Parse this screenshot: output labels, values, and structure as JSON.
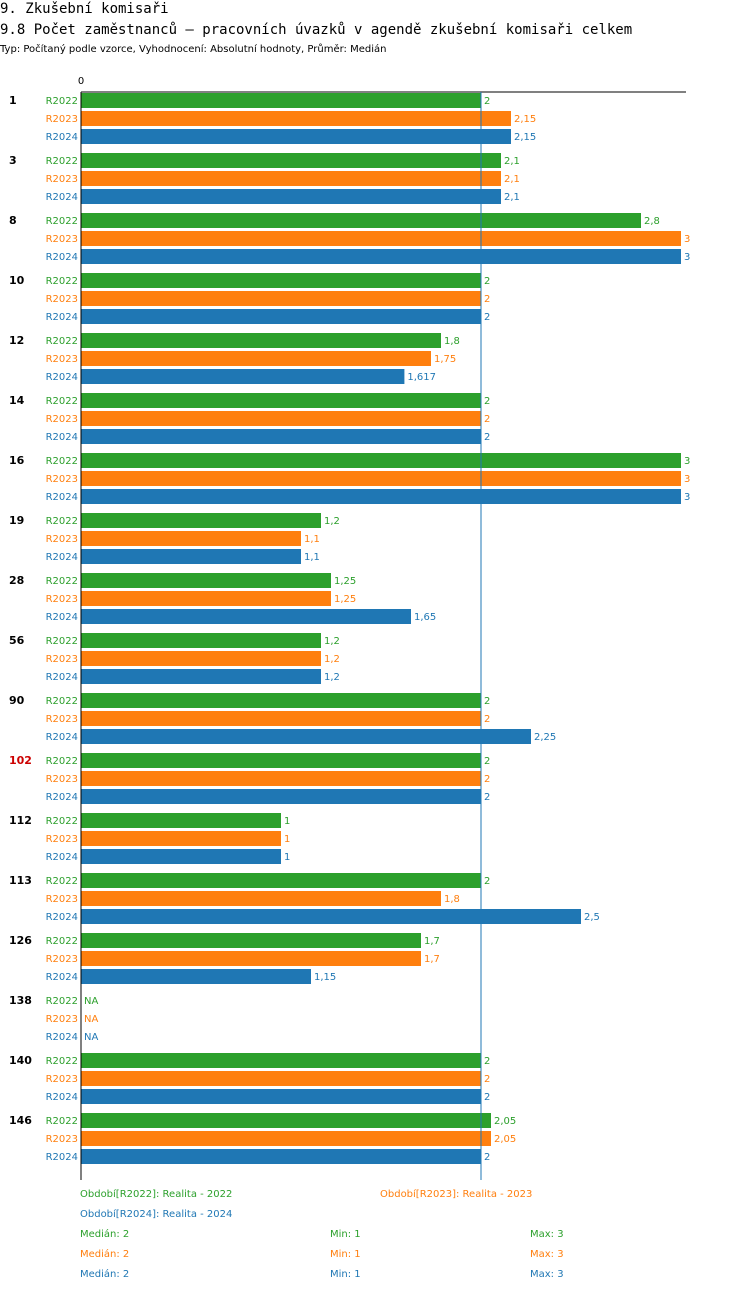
{
  "header": {
    "title": "9. Zkušební komisaři",
    "subtitle": "9.8 Počet zaměstnanců – pracovních úvazků v agendě zkušební komisaři celkem",
    "type_line": "Typ: Počítaný podle vzorce, Vyhodnocení: Absolutní hodnoty, Průměr: Medián"
  },
  "colors": {
    "R2022": "#2ca02c",
    "R2023": "#ff7f0e",
    "R2024": "#1f77b4",
    "highlight": "#cc0000"
  },
  "chart_data": {
    "type": "bar",
    "orientation": "horizontal",
    "xlim": [
      0,
      3
    ],
    "x_zero_label": "0",
    "median_line": 2,
    "series_names": [
      "R2022",
      "R2023",
      "R2024"
    ],
    "groups": [
      {
        "label": "1",
        "highlight": false,
        "values": [
          2,
          2.15,
          2.15
        ],
        "labels": [
          "2",
          "2,15",
          "2,15"
        ]
      },
      {
        "label": "3",
        "highlight": false,
        "values": [
          2.1,
          2.1,
          2.1
        ],
        "labels": [
          "2,1",
          "2,1",
          "2,1"
        ]
      },
      {
        "label": "8",
        "highlight": false,
        "values": [
          2.8,
          3,
          3
        ],
        "labels": [
          "2,8",
          "3",
          "3"
        ]
      },
      {
        "label": "10",
        "highlight": false,
        "values": [
          2,
          2,
          2
        ],
        "labels": [
          "2",
          "2",
          "2"
        ]
      },
      {
        "label": "12",
        "highlight": false,
        "values": [
          1.8,
          1.75,
          1.617
        ],
        "labels": [
          "1,8",
          "1,75",
          "1,617"
        ]
      },
      {
        "label": "14",
        "highlight": false,
        "values": [
          2,
          2,
          2
        ],
        "labels": [
          "2",
          "2",
          "2"
        ]
      },
      {
        "label": "16",
        "highlight": false,
        "values": [
          3,
          3,
          3
        ],
        "labels": [
          "3",
          "3",
          "3"
        ]
      },
      {
        "label": "19",
        "highlight": false,
        "values": [
          1.2,
          1.1,
          1.1
        ],
        "labels": [
          "1,2",
          "1,1",
          "1,1"
        ]
      },
      {
        "label": "28",
        "highlight": false,
        "values": [
          1.25,
          1.25,
          1.65
        ],
        "labels": [
          "1,25",
          "1,25",
          "1,65"
        ]
      },
      {
        "label": "56",
        "highlight": false,
        "values": [
          1.2,
          1.2,
          1.2
        ],
        "labels": [
          "1,2",
          "1,2",
          "1,2"
        ]
      },
      {
        "label": "90",
        "highlight": false,
        "values": [
          2,
          2,
          2.25
        ],
        "labels": [
          "2",
          "2",
          "2,25"
        ]
      },
      {
        "label": "102",
        "highlight": true,
        "values": [
          2,
          2,
          2
        ],
        "labels": [
          "2",
          "2",
          "2"
        ]
      },
      {
        "label": "112",
        "highlight": false,
        "values": [
          1,
          1,
          1
        ],
        "labels": [
          "1",
          "1",
          "1"
        ]
      },
      {
        "label": "113",
        "highlight": false,
        "values": [
          2,
          1.8,
          2.5
        ],
        "labels": [
          "2",
          "1,8",
          "2,5"
        ]
      },
      {
        "label": "126",
        "highlight": false,
        "values": [
          1.7,
          1.7,
          1.15
        ],
        "labels": [
          "1,7",
          "1,7",
          "1,15"
        ]
      },
      {
        "label": "138",
        "highlight": false,
        "values": [
          null,
          null,
          null
        ],
        "labels": [
          "NA",
          "NA",
          "NA"
        ]
      },
      {
        "label": "140",
        "highlight": false,
        "values": [
          2,
          2,
          2
        ],
        "labels": [
          "2",
          "2",
          "2"
        ]
      },
      {
        "label": "146",
        "highlight": false,
        "values": [
          2.05,
          2.05,
          2
        ],
        "labels": [
          "2,05",
          "2,05",
          "2"
        ]
      }
    ]
  },
  "legend": {
    "period_2022": "Období[R2022]: Realita - 2022",
    "period_2023": "Období[R2023]: Realita - 2023",
    "period_2024": "Období[R2024]: Realita - 2024",
    "stats": [
      {
        "median": "Medián: 2",
        "min": "Min: 1",
        "max": "Max: 3"
      },
      {
        "median": "Medián: 2",
        "min": "Min: 1",
        "max": "Max: 3"
      },
      {
        "median": "Medián: 2",
        "min": "Min: 1",
        "max": "Max: 3"
      }
    ]
  }
}
